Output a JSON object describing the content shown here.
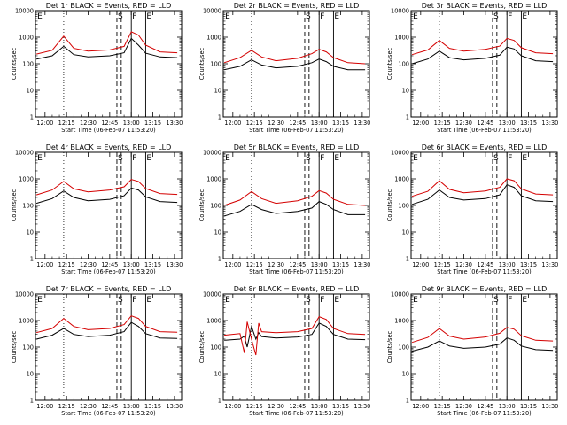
{
  "chart_data": [
    {
      "type": "line",
      "title": "Det 1r BLACK = Events, RED = LLD",
      "xlabel": "Start Time (06-Feb-07 11:53:20)",
      "ylabel": "Counts/sec",
      "x_ticks": [
        "12:00",
        "12:15",
        "12:30",
        "12:45",
        "13:00",
        "13:15",
        "13:30"
      ],
      "y_ticks": [
        "1",
        "10",
        "100",
        "1000",
        "10000"
      ],
      "ylim": [
        1,
        10000
      ],
      "y_scale": "log",
      "markers": [
        {
          "label": "E",
          "time": "11:54"
        },
        {
          "label": "S",
          "time": "12:50"
        },
        {
          "label": "F",
          "time": "13:00"
        },
        {
          "label": "E",
          "time": "13:10"
        }
      ],
      "series": [
        {
          "name": "Events",
          "color": "#000000",
          "times": [
            "11:54",
            "12:05",
            "12:13",
            "12:20",
            "12:30",
            "12:45",
            "12:55",
            "13:00",
            "13:05",
            "13:10",
            "13:20",
            "13:32"
          ],
          "values": [
            150,
            200,
            450,
            220,
            180,
            200,
            260,
            900,
            500,
            250,
            180,
            170
          ]
        },
        {
          "name": "LLD",
          "color": "#d40000",
          "times": [
            "11:54",
            "12:05",
            "12:13",
            "12:20",
            "12:30",
            "12:45",
            "12:55",
            "13:00",
            "13:05",
            "13:10",
            "13:20",
            "13:32"
          ],
          "values": [
            230,
            320,
            1100,
            380,
            300,
            330,
            450,
            1600,
            1200,
            500,
            280,
            260
          ]
        }
      ]
    },
    {
      "type": "line",
      "title": "Det 2r BLACK = Events, RED = LLD",
      "xlabel": "Start Time (06-Feb-07 11:53:20)",
      "ylabel": "Counts/sec",
      "x_ticks": [
        "12:00",
        "12:15",
        "12:30",
        "12:45",
        "13:00",
        "13:15",
        "13:30"
      ],
      "y_ticks": [
        "1",
        "10",
        "100",
        "1000",
        "10000"
      ],
      "ylim": [
        1,
        10000
      ],
      "y_scale": "log",
      "markers": [
        {
          "label": "E",
          "time": "11:54"
        },
        {
          "label": "S",
          "time": "12:50"
        },
        {
          "label": "F",
          "time": "13:00"
        },
        {
          "label": "E",
          "time": "13:10"
        }
      ],
      "series": [
        {
          "name": "Events",
          "color": "#000000",
          "times": [
            "11:54",
            "12:05",
            "12:13",
            "12:20",
            "12:30",
            "12:45",
            "12:55",
            "13:00",
            "13:05",
            "13:10",
            "13:20",
            "13:32"
          ],
          "values": [
            60,
            80,
            140,
            90,
            70,
            80,
            110,
            150,
            120,
            80,
            60,
            60
          ]
        },
        {
          "name": "LLD",
          "color": "#d40000",
          "times": [
            "11:54",
            "12:05",
            "12:13",
            "12:20",
            "12:30",
            "12:45",
            "12:55",
            "13:00",
            "13:05",
            "13:10",
            "13:20",
            "13:32"
          ],
          "values": [
            110,
            170,
            320,
            180,
            130,
            160,
            240,
            350,
            280,
            170,
            110,
            100
          ]
        }
      ]
    },
    {
      "type": "line",
      "title": "Det 3r BLACK = Events, RED = LLD",
      "xlabel": "Start Time (06-Feb-07 11:53:20)",
      "ylabel": "Counts/sec",
      "x_ticks": [
        "12:00",
        "12:15",
        "12:30",
        "12:45",
        "13:00",
        "13:15",
        "13:30"
      ],
      "y_ticks": [
        "1",
        "10",
        "100",
        "1000",
        "10000"
      ],
      "ylim": [
        1,
        10000
      ],
      "y_scale": "log",
      "markers": [
        {
          "label": "E",
          "time": "11:54"
        },
        {
          "label": "S",
          "time": "12:50"
        },
        {
          "label": "F",
          "time": "13:00"
        },
        {
          "label": "E",
          "time": "13:10"
        }
      ],
      "series": [
        {
          "name": "Events",
          "color": "#000000",
          "times": [
            "11:54",
            "12:05",
            "12:13",
            "12:20",
            "12:30",
            "12:45",
            "12:55",
            "13:00",
            "13:05",
            "13:10",
            "13:20",
            "13:32"
          ],
          "values": [
            100,
            150,
            300,
            170,
            140,
            160,
            210,
            420,
            360,
            200,
            130,
            120
          ]
        },
        {
          "name": "LLD",
          "color": "#d40000",
          "times": [
            "11:54",
            "12:05",
            "12:13",
            "12:20",
            "12:30",
            "12:45",
            "12:55",
            "13:00",
            "13:05",
            "13:10",
            "13:20",
            "13:32"
          ],
          "values": [
            220,
            330,
            750,
            380,
            300,
            350,
            460,
            900,
            750,
            400,
            260,
            240
          ]
        }
      ]
    },
    {
      "type": "line",
      "title": "Det 4r BLACK = Events, RED = LLD",
      "xlabel": "Start Time (06-Feb-07 11:53:20)",
      "ylabel": "Counts/sec",
      "x_ticks": [
        "12:00",
        "12:15",
        "12:30",
        "12:45",
        "13:00",
        "13:15",
        "13:30"
      ],
      "y_ticks": [
        "1",
        "10",
        "100",
        "1000",
        "10000"
      ],
      "ylim": [
        1,
        10000
      ],
      "y_scale": "log",
      "markers": [
        {
          "label": "E",
          "time": "11:54"
        },
        {
          "label": "S",
          "time": "12:50"
        },
        {
          "label": "F",
          "time": "13:00"
        },
        {
          "label": "E",
          "time": "13:10"
        }
      ],
      "series": [
        {
          "name": "Events",
          "color": "#000000",
          "times": [
            "11:54",
            "12:05",
            "12:13",
            "12:20",
            "12:30",
            "12:45",
            "12:55",
            "13:00",
            "13:05",
            "13:10",
            "13:20",
            "13:32"
          ],
          "values": [
            120,
            180,
            350,
            200,
            150,
            170,
            230,
            450,
            380,
            210,
            140,
            130
          ]
        },
        {
          "name": "LLD",
          "color": "#d40000",
          "times": [
            "11:54",
            "12:05",
            "12:13",
            "12:20",
            "12:30",
            "12:45",
            "12:55",
            "13:00",
            "13:05",
            "13:10",
            "13:20",
            "13:32"
          ],
          "values": [
            250,
            380,
            800,
            420,
            320,
            380,
            500,
            950,
            800,
            430,
            280,
            260
          ]
        }
      ]
    },
    {
      "type": "line",
      "title": "Det 5r BLACK = Events, RED = LLD",
      "xlabel": "Start Time (06-Feb-07 11:53:20)",
      "ylabel": "Counts/sec",
      "x_ticks": [
        "12:00",
        "12:15",
        "12:30",
        "12:45",
        "13:00",
        "13:15",
        "13:30"
      ],
      "y_ticks": [
        "1",
        "10",
        "100",
        "1000",
        "10000"
      ],
      "ylim": [
        1,
        10000
      ],
      "y_scale": "log",
      "markers": [
        {
          "label": "E",
          "time": "11:54"
        },
        {
          "label": "S",
          "time": "12:50"
        },
        {
          "label": "F",
          "time": "13:00"
        },
        {
          "label": "E",
          "time": "13:10"
        }
      ],
      "series": [
        {
          "name": "Events",
          "color": "#000000",
          "times": [
            "11:54",
            "12:05",
            "12:13",
            "12:20",
            "12:30",
            "12:45",
            "12:55",
            "13:00",
            "13:05",
            "13:10",
            "13:20",
            "13:32"
          ],
          "values": [
            40,
            60,
            110,
            70,
            50,
            60,
            80,
            140,
            110,
            70,
            45,
            45
          ]
        },
        {
          "name": "LLD",
          "color": "#d40000",
          "times": [
            "11:54",
            "12:05",
            "12:13",
            "12:20",
            "12:30",
            "12:45",
            "12:55",
            "13:00",
            "13:05",
            "13:10",
            "13:20",
            "13:32"
          ],
          "values": [
            100,
            160,
            330,
            180,
            120,
            150,
            220,
            360,
            290,
            170,
            110,
            100
          ]
        }
      ]
    },
    {
      "type": "line",
      "title": "Det 6r BLACK = Events, RED = LLD",
      "xlabel": "Start Time (06-Feb-07 11:53:20)",
      "ylabel": "Counts/sec",
      "x_ticks": [
        "12:00",
        "12:15",
        "12:30",
        "12:45",
        "13:00",
        "13:15",
        "13:30"
      ],
      "y_ticks": [
        "1",
        "10",
        "100",
        "1000",
        "10000"
      ],
      "ylim": [
        1,
        10000
      ],
      "y_scale": "log",
      "markers": [
        {
          "label": "E",
          "time": "11:54"
        },
        {
          "label": "S",
          "time": "12:50"
        },
        {
          "label": "F",
          "time": "13:00"
        },
        {
          "label": "E",
          "time": "13:10"
        }
      ],
      "series": [
        {
          "name": "Events",
          "color": "#000000",
          "times": [
            "11:54",
            "12:05",
            "12:13",
            "12:20",
            "12:30",
            "12:45",
            "12:55",
            "13:00",
            "13:05",
            "13:10",
            "13:20",
            "13:32"
          ],
          "values": [
            110,
            170,
            380,
            200,
            160,
            180,
            250,
            600,
            480,
            230,
            150,
            140
          ]
        },
        {
          "name": "LLD",
          "color": "#d40000",
          "times": [
            "11:54",
            "12:05",
            "12:13",
            "12:20",
            "12:30",
            "12:45",
            "12:55",
            "13:00",
            "13:05",
            "13:10",
            "13:20",
            "13:32"
          ],
          "values": [
            220,
            340,
            850,
            400,
            300,
            350,
            480,
            1000,
            850,
            420,
            270,
            250
          ]
        }
      ]
    },
    {
      "type": "line",
      "title": "Det 7r BLACK = Events, RED = LLD",
      "xlabel": "Start Time (06-Feb-07 11:53:20)",
      "ylabel": "Counts/sec",
      "x_ticks": [
        "12:00",
        "12:15",
        "12:30",
        "12:45",
        "13:00",
        "13:15",
        "13:30"
      ],
      "y_ticks": [
        "1",
        "10",
        "100",
        "1000",
        "10000"
      ],
      "ylim": [
        1,
        10000
      ],
      "y_scale": "log",
      "markers": [
        {
          "label": "E",
          "time": "11:54"
        },
        {
          "label": "S",
          "time": "12:50"
        },
        {
          "label": "F",
          "time": "13:00"
        },
        {
          "label": "E",
          "time": "13:10"
        }
      ],
      "series": [
        {
          "name": "Events",
          "color": "#000000",
          "times": [
            "11:54",
            "12:05",
            "12:13",
            "12:20",
            "12:30",
            "12:45",
            "12:55",
            "13:00",
            "13:05",
            "13:10",
            "13:20",
            "13:32"
          ],
          "values": [
            200,
            280,
            500,
            300,
            250,
            280,
            380,
            850,
            600,
            320,
            220,
            210
          ]
        },
        {
          "name": "LLD",
          "color": "#d40000",
          "times": [
            "11:54",
            "12:05",
            "12:13",
            "12:20",
            "12:30",
            "12:45",
            "12:55",
            "13:00",
            "13:05",
            "13:10",
            "13:20",
            "13:32"
          ],
          "values": [
            350,
            500,
            1200,
            600,
            450,
            500,
            700,
            1500,
            1200,
            600,
            380,
            360
          ]
        }
      ]
    },
    {
      "type": "line",
      "title": "Det 8r BLACK = Events, RED = LLD",
      "xlabel": "Start Time (06-Feb-07 11:53:20)",
      "ylabel": "Counts/sec",
      "x_ticks": [
        "12:00",
        "12:15",
        "12:30",
        "12:45",
        "13:00",
        "13:15",
        "13:30"
      ],
      "y_ticks": [
        "1",
        "10",
        "100",
        "1000",
        "10000"
      ],
      "ylim": [
        1,
        10000
      ],
      "y_scale": "log",
      "markers": [
        {
          "label": "E",
          "time": "11:54"
        },
        {
          "label": "S",
          "time": "12:50"
        },
        {
          "label": "F",
          "time": "13:00"
        },
        {
          "label": "E",
          "time": "13:10"
        }
      ],
      "series": [
        {
          "name": "Events",
          "color": "#000000",
          "times": [
            "11:54",
            "12:05",
            "12:08",
            "12:10",
            "12:13",
            "12:16",
            "12:18",
            "12:20",
            "12:30",
            "12:45",
            "12:55",
            "13:00",
            "13:05",
            "13:10",
            "13:20",
            "13:32"
          ],
          "values": [
            180,
            200,
            260,
            100,
            600,
            200,
            350,
            250,
            220,
            240,
            300,
            800,
            600,
            300,
            200,
            190
          ]
        },
        {
          "name": "LLD",
          "color": "#d40000",
          "times": [
            "11:54",
            "12:05",
            "12:08",
            "12:10",
            "12:13",
            "12:16",
            "12:18",
            "12:20",
            "12:30",
            "12:45",
            "12:55",
            "13:00",
            "13:05",
            "13:10",
            "13:20",
            "13:32"
          ],
          "values": [
            280,
            320,
            60,
            900,
            200,
            50,
            800,
            380,
            350,
            380,
            500,
            1400,
            1100,
            500,
            320,
            300
          ]
        }
      ]
    },
    {
      "type": "line",
      "title": "Det 9r BLACK = Events, RED = LLD",
      "xlabel": "Start Time (06-Feb-07 11:53:20)",
      "ylabel": "Counts/sec",
      "x_ticks": [
        "12:00",
        "12:15",
        "12:30",
        "12:45",
        "13:00",
        "13:15",
        "13:30"
      ],
      "y_ticks": [
        "1",
        "10",
        "100",
        "1000",
        "10000"
      ],
      "ylim": [
        1,
        10000
      ],
      "y_scale": "log",
      "markers": [
        {
          "label": "E",
          "time": "11:54"
        },
        {
          "label": "S",
          "time": "12:50"
        },
        {
          "label": "F",
          "time": "13:00"
        },
        {
          "label": "E",
          "time": "13:10"
        }
      ],
      "series": [
        {
          "name": "Events",
          "color": "#000000",
          "times": [
            "11:54",
            "12:05",
            "12:13",
            "12:20",
            "12:30",
            "12:45",
            "12:55",
            "13:00",
            "13:05",
            "13:10",
            "13:20",
            "13:32"
          ],
          "values": [
            70,
            100,
            170,
            110,
            90,
            100,
            130,
            220,
            180,
            110,
            80,
            75
          ]
        },
        {
          "name": "LLD",
          "color": "#d40000",
          "times": [
            "11:54",
            "12:05",
            "12:13",
            "12:20",
            "12:30",
            "12:45",
            "12:55",
            "13:00",
            "13:05",
            "13:10",
            "13:20",
            "13:32"
          ],
          "values": [
            150,
            230,
            500,
            260,
            200,
            240,
            330,
            550,
            470,
            270,
            180,
            170
          ]
        }
      ]
    }
  ]
}
